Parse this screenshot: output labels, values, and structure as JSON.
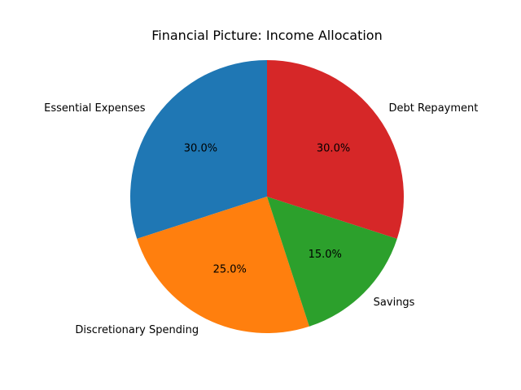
{
  "chart_data": {
    "type": "pie",
    "title": "Financial Picture: Income Allocation",
    "start_angle_deg": 90,
    "direction": "counterclockwise",
    "slices": [
      {
        "label": "Essential Expenses",
        "value": 30.0,
        "pct_label": "30.0%",
        "color": "#1f77b4"
      },
      {
        "label": "Discretionary Spending",
        "value": 25.0,
        "pct_label": "25.0%",
        "color": "#ff7f0e"
      },
      {
        "label": "Savings",
        "value": 15.0,
        "pct_label": "15.0%",
        "color": "#2ca02c"
      },
      {
        "label": "Debt Repayment",
        "value": 30.0,
        "pct_label": "30.0%",
        "color": "#d62728"
      }
    ]
  }
}
